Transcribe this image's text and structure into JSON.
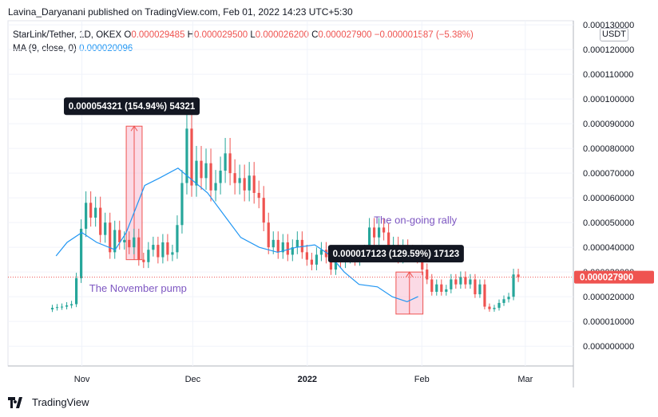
{
  "header": {
    "text": "Lavina_Daryanani published on TradingView.com, Feb 01, 2022 14:23 UTC+5:30"
  },
  "legend": {
    "symbol": "StarLink/Tether, 1D, OKEX",
    "o_label": "O",
    "o_value": "0.000029485",
    "h_label": "H",
    "h_value": "0.000029500",
    "l_label": "L",
    "l_value": "0.000026200",
    "c_label": "C",
    "c_value": "0.000027900",
    "change": "−0.000001587 (−5.38%)",
    "ma_label": "MA (9, close, 0)",
    "ma_value": "0.000020096"
  },
  "currency": "USDT",
  "footer": {
    "brand": "TradingView"
  },
  "colors": {
    "up": "#26a69a",
    "down": "#ef5350",
    "ma": "#2196f3",
    "annotation": "#7e57c2",
    "range_fill": "#f8bbd0"
  },
  "chart_data": {
    "type": "candlestick",
    "y_ticks": [
      "0.000000000",
      "0.000010000",
      "0.000020000",
      "0.000030000",
      "0.000040000",
      "0.000050000",
      "0.000060000",
      "0.000070000",
      "0.000080000",
      "0.000090000",
      "0.000100000",
      "0.000110000",
      "0.000120000",
      "0.000130000"
    ],
    "ylim": [
      -8e-06,
      0.000131
    ],
    "x_ticks": [
      {
        "label": "Nov",
        "date": "2021-11-01"
      },
      {
        "label": "Dec",
        "date": "2021-12-01"
      },
      {
        "label": "2022",
        "date": "2022-01-01"
      },
      {
        "label": "Feb",
        "date": "2022-02-01"
      },
      {
        "label": "Mar",
        "date": "2022-03-01"
      }
    ],
    "xlim": [
      "2021-10-12",
      "2022-03-14"
    ],
    "last_price": {
      "label": "0.000027900",
      "value": 2.79e-05
    },
    "candle_closes": [
      1.55e-05,
      1.58e-05,
      1.6e-05,
      1.65e-05,
      1.7e-05,
      2.75e-05,
      4.75e-05,
      5.8e-05,
      5.2e-05,
      5.6e-05,
      4.5e-05,
      5e-05,
      3.8e-05,
      4.7e-05,
      4.2e-05,
      4.3e-05,
      4e-05,
      4.4e-05,
      3.5e-05,
      3.4e-05,
      3.9e-05,
      4.1e-05,
      3.6e-05,
      4.2e-05,
      3.7e-05,
      3.8e-05,
      4.9e-05,
      6.6e-05,
      8.8e-05,
      6.5e-05,
      7.5e-05,
      6.8e-05,
      7.4e-05,
      6.3e-05,
      6.6e-05,
      7.1e-05,
      7.8e-05,
      7e-05,
      6.6e-05,
      6.8e-05,
      6.3e-05,
      6.9e-05,
      6.2e-05,
      6e-05,
      5e-05,
      4e-05,
      4.3e-05,
      3.8e-05,
      4.2e-05,
      3.7e-05,
      4e-05,
      4.3e-05,
      3.8e-05,
      3.5e-05,
      3.3e-05,
      3.7e-05,
      3.9e-05,
      3.6e-05,
      3.1e-05,
      3.6e-05,
      3.4e-05,
      3.6e-05,
      3.7e-05,
      3.5e-05,
      3.7e-05,
      3.8e-05,
      4.8e-05,
      4.4e-05,
      4.8e-05,
      4.6e-05,
      3.9e-05,
      4.1e-05,
      3.6e-05,
      4e-05,
      3.8e-05,
      3.7e-05,
      3.6e-05,
      3.1e-05,
      2.7e-05,
      2.2e-05,
      2.5e-05,
      2.2e-05,
      2.3e-05,
      2.7e-05,
      2.5e-05,
      2.8e-05,
      2.5e-05,
      2.7e-05,
      2.1e-05,
      2.5e-05,
      1.6e-05,
      1.5e-05,
      1.55e-05,
      1.75e-05,
      1.9e-05,
      2e-05,
      2.9e-05,
      2.79e-05
    ],
    "candle_start": "2021-10-24",
    "ma_points": [
      [
        "2021-10-25",
        3.65e-05
      ],
      [
        "2021-10-28",
        4.2e-05
      ],
      [
        "2021-11-01",
        4.6e-05
      ],
      [
        "2021-11-05",
        4.2e-05
      ],
      [
        "2021-11-10",
        3.9e-05
      ],
      [
        "2021-11-13",
        4.6e-05
      ],
      [
        "2021-11-18",
        6.5e-05
      ],
      [
        "2021-11-22",
        6.8e-05
      ],
      [
        "2021-11-27",
        7.2e-05
      ],
      [
        "2021-12-01",
        6.7e-05
      ],
      [
        "2021-12-05",
        6.2e-05
      ],
      [
        "2021-12-10",
        5.2e-05
      ],
      [
        "2021-12-14",
        4.4e-05
      ],
      [
        "2021-12-19",
        4e-05
      ],
      [
        "2021-12-24",
        3.8e-05
      ],
      [
        "2021-12-29",
        4e-05
      ],
      [
        "2022-01-03",
        4.1e-05
      ],
      [
        "2022-01-07",
        3.7e-05
      ],
      [
        "2022-01-11",
        3e-05
      ],
      [
        "2022-01-15",
        2.5e-05
      ],
      [
        "2022-01-20",
        2.4e-05
      ],
      [
        "2022-01-24",
        2e-05
      ],
      [
        "2022-01-28",
        1.8e-05
      ],
      [
        "2022-01-31",
        2.01e-05
      ]
    ],
    "ranges": [
      {
        "label": "0.000054321 (154.94%) 54321",
        "from": "2021-11-13",
        "to": "2021-11-16",
        "low": 3.5e-05,
        "high": 8.9e-05
      },
      {
        "label": "0.000017123 (129.59%) 17123",
        "from": "2022-01-25",
        "to": "2022-01-31",
        "low": 1.3e-05,
        "high": 3e-05
      }
    ],
    "annotations": [
      {
        "text": "The November pump",
        "date": "2021-11-03",
        "value": 2.2e-05
      },
      {
        "text": "The on-going rally",
        "date": "2022-01-19",
        "value": 4.95e-05
      }
    ]
  }
}
